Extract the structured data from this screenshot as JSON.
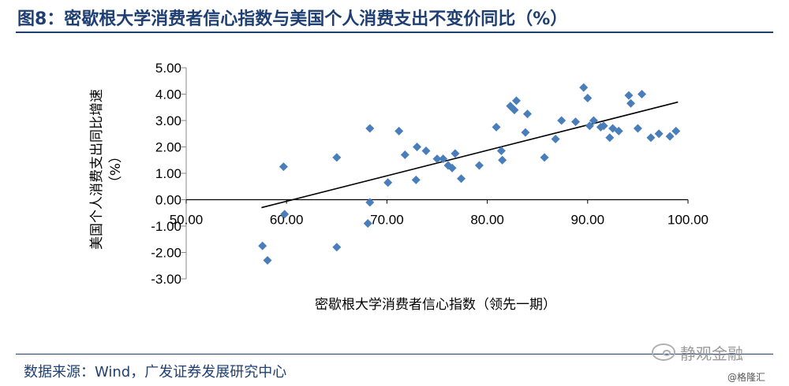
{
  "title": "图8：密歇根大学消费者信心指数与美国个人消费支出不变价同比（%）",
  "source": "数据来源：Wind，广发证券发展研究中心",
  "watermark": {
    "main": "静观金融",
    "small": "@格隆汇",
    "icon": "wechat-icon"
  },
  "colors": {
    "title": "#1f3f73",
    "marker": "#4a7ebb",
    "trendline": "#000000"
  },
  "chart_data": {
    "type": "scatter",
    "xlabel": "密歇根大学消费者信心指数（领先一期）",
    "ylabel_line1": "美国个人消费支出同比增速",
    "ylabel_line2": "（%）",
    "xlim": [
      50,
      100
    ],
    "ylim": [
      -3,
      5
    ],
    "x_ticks": [
      "50.00",
      "60.00",
      "70.00",
      "80.00",
      "90.00",
      "100.00"
    ],
    "y_ticks": [
      "5.00",
      "4.00",
      "3.00",
      "2.00",
      "1.00",
      "0.00",
      "-1.00",
      "-2.00",
      "-3.00"
    ],
    "marker": "diamond",
    "grid": false,
    "trendline": {
      "x": [
        57.5,
        99
      ],
      "y": [
        -0.3,
        3.7
      ]
    },
    "points": [
      [
        57.6,
        -1.75
      ],
      [
        58.1,
        -2.3
      ],
      [
        59.7,
        1.25
      ],
      [
        59.8,
        -0.55
      ],
      [
        65.0,
        1.6
      ],
      [
        65.0,
        -1.8
      ],
      [
        68.1,
        -0.9
      ],
      [
        68.3,
        -0.1
      ],
      [
        68.3,
        2.7
      ],
      [
        70.1,
        0.65
      ],
      [
        71.2,
        2.6
      ],
      [
        71.8,
        1.7
      ],
      [
        72.9,
        0.75
      ],
      [
        73.0,
        2.0
      ],
      [
        73.9,
        1.85
      ],
      [
        75.0,
        1.55
      ],
      [
        75.6,
        1.55
      ],
      [
        76.1,
        1.3
      ],
      [
        76.5,
        1.2
      ],
      [
        76.8,
        1.75
      ],
      [
        77.4,
        0.8
      ],
      [
        79.2,
        1.3
      ],
      [
        80.9,
        2.75
      ],
      [
        81.4,
        1.85
      ],
      [
        81.5,
        1.5
      ],
      [
        82.3,
        3.55
      ],
      [
        82.7,
        3.4
      ],
      [
        82.9,
        3.75
      ],
      [
        83.8,
        2.55
      ],
      [
        84.0,
        3.25
      ],
      [
        85.7,
        1.6
      ],
      [
        86.8,
        2.3
      ],
      [
        87.4,
        3.0
      ],
      [
        88.8,
        2.95
      ],
      [
        89.6,
        4.25
      ],
      [
        90.0,
        3.85
      ],
      [
        90.2,
        2.8
      ],
      [
        90.6,
        3.0
      ],
      [
        91.3,
        2.75
      ],
      [
        91.6,
        2.8
      ],
      [
        92.2,
        2.35
      ],
      [
        92.5,
        2.7
      ],
      [
        93.1,
        2.6
      ],
      [
        94.1,
        3.95
      ],
      [
        94.3,
        3.65
      ],
      [
        95.0,
        2.7
      ],
      [
        95.4,
        4.0
      ],
      [
        96.3,
        2.35
      ],
      [
        97.1,
        2.5
      ],
      [
        98.2,
        2.4
      ],
      [
        98.8,
        2.6
      ]
    ]
  }
}
